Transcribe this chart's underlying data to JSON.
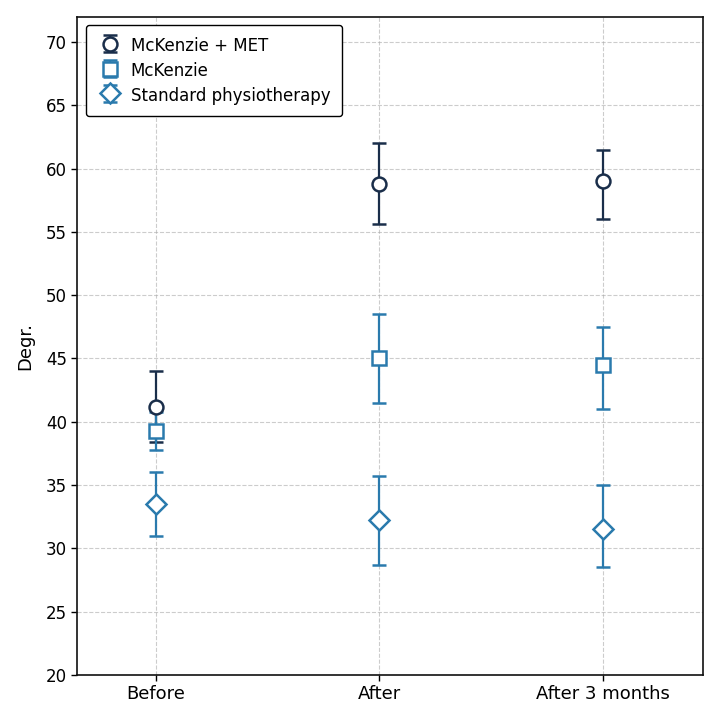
{
  "x_labels": [
    "Before",
    "After",
    "After 3 months"
  ],
  "x_positions": [
    0,
    1,
    2
  ],
  "series": [
    {
      "label": "McKenzie + MET",
      "line_color": "#1a2e4a",
      "marker_color": "#1a2e4a",
      "marker": "o",
      "marker_facecolor": "white",
      "values": [
        41.2,
        58.8,
        59.0
      ],
      "yerr_lower": [
        2.8,
        3.2,
        3.0
      ],
      "yerr_upper": [
        2.8,
        3.2,
        2.5
      ]
    },
    {
      "label": "McKenzie",
      "line_color": "#2a7aad",
      "marker_color": "#2a7aad",
      "marker": "s",
      "marker_facecolor": "white",
      "values": [
        39.3,
        45.0,
        44.5
      ],
      "yerr_lower": [
        1.5,
        3.5,
        3.5
      ],
      "yerr_upper": [
        1.5,
        3.5,
        3.0
      ]
    },
    {
      "label": "Standard physiotherapy",
      "line_color": "#2a7aad",
      "marker_color": "#2a7aad",
      "marker": "D",
      "marker_facecolor": "white",
      "values": [
        33.5,
        32.2,
        31.5
      ],
      "yerr_lower": [
        2.5,
        3.5,
        3.0
      ],
      "yerr_upper": [
        2.5,
        3.5,
        3.5
      ]
    }
  ],
  "ylabel": "Degr.",
  "ylim": [
    20,
    72
  ],
  "yticks": [
    20,
    25,
    30,
    35,
    40,
    45,
    50,
    55,
    60,
    65,
    70
  ],
  "background_color": "#ffffff",
  "grid_color": "#aaaaaa",
  "legend_loc": "upper left",
  "figsize": [
    7.2,
    7.2
  ],
  "dpi": 100
}
